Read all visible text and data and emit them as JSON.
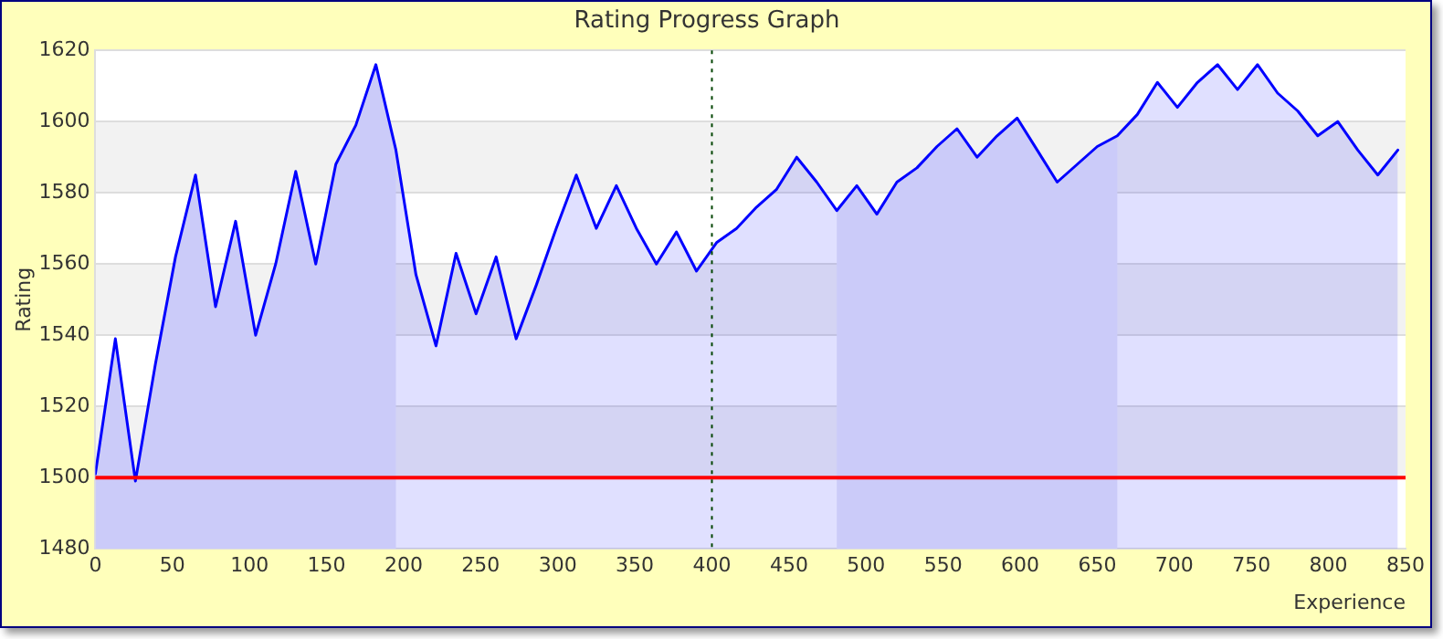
{
  "chart_data": {
    "type": "area",
    "title": "Rating Progress Graph",
    "xlabel": "Experience",
    "ylabel": "Rating",
    "x": [
      0,
      13,
      26,
      39,
      52,
      65,
      78,
      91,
      104,
      117,
      130,
      143,
      156,
      169,
      182,
      195,
      208,
      221,
      234,
      247,
      260,
      273,
      286,
      299,
      312,
      325,
      338,
      351,
      364,
      377,
      390,
      403,
      416,
      429,
      442,
      455,
      468,
      481,
      494,
      507,
      520,
      533,
      546,
      559,
      572,
      585,
      598,
      611,
      624,
      637,
      650,
      663,
      676,
      689,
      702,
      715,
      728,
      741,
      754,
      767,
      780,
      793,
      806,
      819,
      832,
      845
    ],
    "series": [
      {
        "color": "#0000ff",
        "values": [
          1501,
          1539,
          1499,
          1532,
          1562,
          1585,
          1548,
          1572,
          1540,
          1560,
          1586,
          1560,
          1588,
          1599,
          1616,
          1592,
          1557,
          1537,
          1563,
          1546,
          1562,
          1539,
          1554,
          1570,
          1585,
          1570,
          1582,
          1570,
          1560,
          1569,
          1558,
          1566,
          1570,
          1576,
          1581,
          1590,
          1583,
          1575,
          1582,
          1574,
          1583,
          1587,
          1593,
          1598,
          1590,
          1596,
          1601,
          1592,
          1583,
          1588,
          1593,
          1596,
          1602,
          1611,
          1604,
          1611,
          1616,
          1609,
          1616,
          1608,
          1603,
          1596,
          1600,
          1592,
          1585,
          1592
        ]
      }
    ],
    "xlim": [
      0,
      850
    ],
    "xticks": [
      0,
      50,
      100,
      150,
      200,
      250,
      300,
      350,
      400,
      450,
      500,
      550,
      600,
      650,
      700,
      750,
      800,
      850
    ],
    "ylim": [
      1480,
      1620
    ],
    "yticks": [
      1480,
      1500,
      1520,
      1540,
      1560,
      1580,
      1600,
      1620
    ],
    "ref_lines": [
      {
        "axis": "y",
        "value": 1500,
        "color": "#ff0000",
        "line_style": "solid"
      },
      {
        "axis": "x",
        "value": 400,
        "color": "#004400",
        "line_style": "dotted"
      }
    ],
    "bands": [
      {
        "axis": "x",
        "from": 0,
        "to": 195,
        "color": "#e8e8f9"
      },
      {
        "axis": "x",
        "from": 481,
        "to": 663,
        "color": "#e8e8f9"
      }
    ],
    "grid": "y",
    "legend": false,
    "marker": "none",
    "line_style": "solid"
  }
}
